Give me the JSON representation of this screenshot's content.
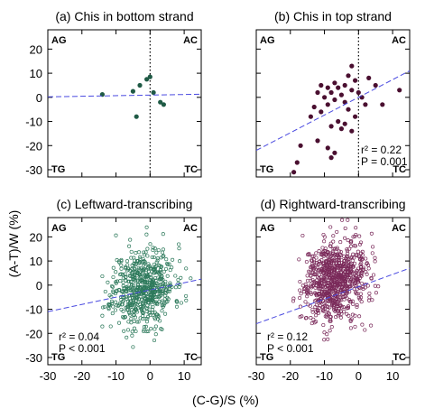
{
  "figure": {
    "ylabel": "(A-T)/W  (%)",
    "xlabel": "(C-G)/S  (%)"
  },
  "chart_data": [
    {
      "type": "scatter",
      "title": "(a) Chis in bottom strand",
      "quadrants": {
        "top_left": "AG",
        "top_right": "AC",
        "bottom_left": "TG",
        "bottom_right": "TC"
      },
      "xlim": [
        -30,
        15
      ],
      "ylim": [
        -33,
        28
      ],
      "yticks": [
        "20",
        "10",
        "0",
        "-10",
        "-20",
        "-30"
      ],
      "xticks": [],
      "marker": "filled",
      "color": "#1f5a45",
      "vline_x": 0,
      "trend": {
        "x": [
          -30,
          15
        ],
        "y": [
          0.2,
          1.3
        ]
      },
      "points": [
        [
          -14,
          1.2
        ],
        [
          -5,
          2.5
        ],
        [
          -3,
          5
        ],
        [
          -1,
          7.5
        ],
        [
          0,
          8.5
        ],
        [
          1,
          2
        ],
        [
          3,
          -2
        ],
        [
          4,
          -3
        ],
        [
          -4,
          -8
        ]
      ],
      "stats": []
    },
    {
      "type": "scatter",
      "title": "(b) Chis in top strand",
      "quadrants": {
        "top_left": "AG",
        "top_right": "AC",
        "bottom_left": "TG",
        "bottom_right": "TC"
      },
      "xlim": [
        -30,
        15
      ],
      "ylim": [
        -33,
        28
      ],
      "yticks": [],
      "xticks": [],
      "marker": "filled",
      "color": "#4a0f30",
      "vline_x": 0,
      "trend": {
        "x": [
          -30,
          15
        ],
        "y": [
          -22,
          11
        ]
      },
      "points": [
        [
          -18,
          -27
        ],
        [
          -19,
          -31
        ],
        [
          -17,
          -20
        ],
        [
          -12,
          -18
        ],
        [
          -9,
          -21
        ],
        [
          -8,
          -25
        ],
        [
          -7,
          -23
        ],
        [
          -14,
          -8
        ],
        [
          -13,
          -4
        ],
        [
          -11,
          -6
        ],
        [
          -10,
          0
        ],
        [
          -9,
          -3
        ],
        [
          -8,
          2
        ],
        [
          -7,
          -1
        ],
        [
          -6,
          4
        ],
        [
          -5,
          1
        ],
        [
          -4,
          -2
        ],
        [
          -3,
          -5
        ],
        [
          -2,
          3
        ],
        [
          -1,
          -8
        ],
        [
          -1,
          7
        ],
        [
          0,
          2
        ],
        [
          -3,
          9
        ],
        [
          -2,
          13
        ],
        [
          -5,
          -13
        ],
        [
          -4,
          -11
        ],
        [
          -6,
          -10
        ],
        [
          -2,
          -14
        ],
        [
          2,
          -3
        ],
        [
          1,
          0
        ],
        [
          3,
          8
        ],
        [
          5,
          5
        ],
        [
          7,
          -3
        ],
        [
          -11,
          5
        ],
        [
          -9,
          4
        ],
        [
          -7,
          6
        ],
        [
          -8,
          -12
        ],
        [
          -12,
          2
        ],
        [
          -4,
          5
        ],
        [
          12,
          3
        ]
      ],
      "stats": [
        "r² = 0.22",
        "P = 0.001"
      ]
    },
    {
      "type": "scatter",
      "title": "(c) Leftward-transcribing",
      "quadrants": {
        "top_left": "AG",
        "top_right": "AC",
        "bottom_left": "TG",
        "bottom_right": "TC"
      },
      "xlim": [
        -30,
        15
      ],
      "ylim": [
        -33,
        28
      ],
      "yticks": [
        "20",
        "10",
        "0",
        "-10",
        "-20",
        "-30"
      ],
      "xticks": [
        "-30",
        "-20",
        "-10",
        "0",
        "10"
      ],
      "marker": "open",
      "color": "#2e7a5c",
      "vline_x": null,
      "trend": {
        "x": [
          -30,
          15
        ],
        "y": [
          -11,
          2.5
        ]
      },
      "cloud": {
        "n": 620,
        "mean_x": -2,
        "sd_x": 4.5,
        "mean_y": -1,
        "sd_y": 8,
        "seed": 11,
        "xmin": -14,
        "xmax": 14,
        "ymin": -28,
        "ymax": 27
      },
      "stats": [
        "r² = 0.04",
        "P < 0.001"
      ]
    },
    {
      "type": "scatter",
      "title": "(d) Rightward-transcribing",
      "quadrants": {
        "top_left": "AG",
        "top_right": "AC",
        "bottom_left": "TG",
        "bottom_right": "TC"
      },
      "xlim": [
        -30,
        15
      ],
      "ylim": [
        -33,
        28
      ],
      "yticks": [],
      "xticks": [
        "-30",
        "-20",
        "-10",
        "0",
        "10"
      ],
      "marker": "open",
      "color": "#7a2a5a",
      "vline_x": null,
      "trend": {
        "x": [
          -30,
          15
        ],
        "y": [
          -16,
          7
        ]
      },
      "cloud": {
        "n": 820,
        "mean_x": -7,
        "sd_x": 4.5,
        "mean_y": 2,
        "sd_y": 8,
        "seed": 29,
        "xmin": -20,
        "xmax": 8,
        "ymin": -31,
        "ymax": 27
      },
      "stats": [
        "r² = 0.12",
        "P < 0.001"
      ]
    }
  ]
}
